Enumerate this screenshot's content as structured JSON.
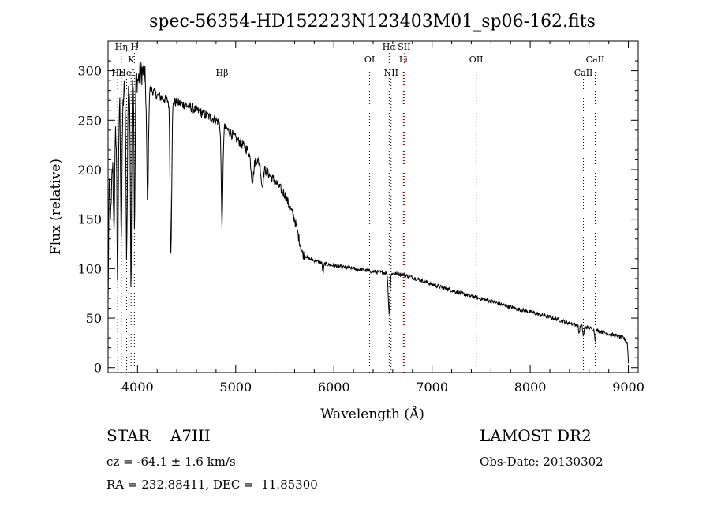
{
  "chart_data": {
    "type": "line",
    "title": "spec-56354-HD152223N123403M01_sp06-162.fits",
    "xlabel": "Wavelength (Å)",
    "ylabel": "Flux (relative)",
    "xlim": [
      3700,
      9100
    ],
    "ylim": [
      -5,
      330
    ],
    "xticks": [
      4000,
      5000,
      6000,
      7000,
      8000,
      9000
    ],
    "yticks": [
      0,
      50,
      100,
      150,
      200,
      250,
      300
    ],
    "series_color": "#000000",
    "spectrum_anchors": [
      [
        3700,
        60
      ],
      [
        3710,
        180
      ],
      [
        3730,
        150
      ],
      [
        3750,
        250
      ],
      [
        3770,
        260
      ],
      [
        3790,
        240
      ],
      [
        3820,
        280
      ],
      [
        3850,
        270
      ],
      [
        3880,
        290
      ],
      [
        3900,
        285
      ],
      [
        3930,
        280
      ],
      [
        3960,
        300
      ],
      [
        4000,
        290
      ],
      [
        4050,
        300
      ],
      [
        4100,
        285
      ],
      [
        4150,
        280
      ],
      [
        4200,
        275
      ],
      [
        4300,
        270
      ],
      [
        4400,
        268
      ],
      [
        4500,
        265
      ],
      [
        4600,
        260
      ],
      [
        4700,
        255
      ],
      [
        4800,
        250
      ],
      [
        4860,
        245
      ],
      [
        4900,
        242
      ],
      [
        5000,
        232
      ],
      [
        5100,
        222
      ],
      [
        5200,
        212
      ],
      [
        5300,
        200
      ],
      [
        5400,
        188
      ],
      [
        5500,
        175
      ],
      [
        5600,
        150
      ],
      [
        5680,
        115
      ],
      [
        5750,
        110
      ],
      [
        5900,
        105
      ],
      [
        6000,
        103
      ],
      [
        6200,
        100
      ],
      [
        6400,
        97
      ],
      [
        6500,
        96
      ],
      [
        6600,
        95
      ],
      [
        6700,
        94
      ],
      [
        6900,
        88
      ],
      [
        7000,
        84
      ],
      [
        7200,
        78
      ],
      [
        7400,
        72
      ],
      [
        7600,
        67
      ],
      [
        7800,
        61
      ],
      [
        8000,
        56
      ],
      [
        8200,
        51
      ],
      [
        8400,
        45
      ],
      [
        8600,
        40
      ],
      [
        8800,
        34
      ],
      [
        8950,
        30
      ],
      [
        8990,
        25
      ],
      [
        9000,
        5
      ]
    ],
    "absorption_dips": [
      [
        3760,
        12,
        110
      ],
      [
        3798,
        10,
        160
      ],
      [
        3835,
        10,
        140
      ],
      [
        3889,
        10,
        170
      ],
      [
        3933,
        8,
        200
      ],
      [
        3970,
        8,
        160
      ],
      [
        4102,
        12,
        120
      ],
      [
        4340,
        12,
        150
      ],
      [
        4861,
        12,
        100
      ],
      [
        5170,
        20,
        25
      ],
      [
        5270,
        15,
        20
      ],
      [
        5890,
        8,
        10
      ],
      [
        6563,
        12,
        40
      ],
      [
        8498,
        8,
        8
      ],
      [
        8542,
        8,
        10
      ],
      [
        8662,
        8,
        10
      ]
    ],
    "line_markers": [
      {
        "label": "Hη",
        "x": 3835,
        "row": 1,
        "color": "#000000"
      },
      {
        "label": "H",
        "x": 3968,
        "row": 1,
        "color": "#000000"
      },
      {
        "label": "K",
        "x": 3934,
        "row": 2,
        "color": "#000000"
      },
      {
        "label": "Hε",
        "x": 3798,
        "row": 3,
        "color": "#000000"
      },
      {
        "label": "HeI",
        "x": 3889,
        "row": 3,
        "color": "#000000"
      },
      {
        "label": "Hβ",
        "x": 4861,
        "row": 3,
        "color": "#000000"
      },
      {
        "label": "OI",
        "x": 6364,
        "row": 2,
        "color": "#000000"
      },
      {
        "label": "Hα",
        "x": 6563,
        "row": 1,
        "color": "#000000"
      },
      {
        "label": "NII",
        "x": 6583,
        "row": 3,
        "color": "#000000"
      },
      {
        "label": "SII",
        "x": 6716,
        "row": 1,
        "color": "#cc0000"
      },
      {
        "label": "Li",
        "x": 6708,
        "row": 2,
        "color": "#000000"
      },
      {
        "label": "OII",
        "x": 7450,
        "row": 2,
        "color": "#000000"
      },
      {
        "label": "CaII",
        "x": 8662,
        "row": 2,
        "color": "#000000"
      },
      {
        "label": "CaII",
        "x": 8542,
        "row": 3,
        "color": "#000000"
      }
    ]
  },
  "info": {
    "object_class": "STAR    A7III",
    "survey": "LAMOST DR2",
    "redshift": "cz = -64.1 ± 1.6 km/s",
    "obs_date": "Obs-Date: 20130302",
    "coords": "RA = 232.88411, DEC =  11.85300"
  }
}
